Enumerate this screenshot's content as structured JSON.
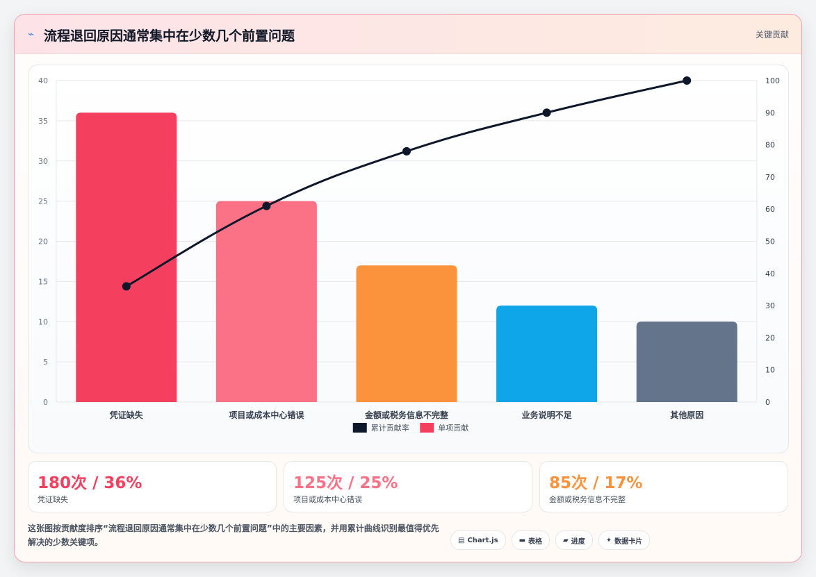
{
  "header": {
    "icon": "lightning-icon",
    "title": "流程退回原因通常集中在少数几个前置问题",
    "tag": "关键贡献"
  },
  "chart_data": {
    "type": "bar",
    "categories": [
      "凭证缺失",
      "项目或成本中心错误",
      "金额或税务信息不完整",
      "业务说明不足",
      "其他原因"
    ],
    "series": [
      {
        "name": "单项贡献",
        "type": "bar",
        "axis": "left",
        "values": [
          36,
          25,
          17,
          12,
          10
        ]
      },
      {
        "name": "累计贡献率",
        "type": "line",
        "axis": "right",
        "values": [
          36,
          61,
          78,
          90,
          100
        ]
      }
    ],
    "bar_colors": [
      "#f43f5e",
      "#fb7185",
      "#fb923c",
      "#0ea5e9",
      "#64748b"
    ],
    "line_color": "#0f172a",
    "y_left": {
      "min": 0,
      "max": 40,
      "ticks": [
        0,
        5,
        10,
        15,
        20,
        25,
        30,
        35,
        40
      ]
    },
    "y_right": {
      "min": 0,
      "max": 100,
      "ticks": [
        0,
        10,
        20,
        30,
        40,
        50,
        60,
        70,
        80,
        90,
        100
      ]
    },
    "legend": [
      {
        "label": "累计贡献率",
        "color": "#0f172a"
      },
      {
        "label": "单项贡献",
        "color": "#f43f5e"
      }
    ],
    "legend_position": "bottom",
    "grid": true
  },
  "stats": [
    {
      "value": "180次 / 36%",
      "label": "凭证缺失",
      "color": "#f43f5e"
    },
    {
      "value": "125次 / 25%",
      "label": "项目或成本中心错误",
      "color": "#fb7185"
    },
    {
      "value": "85次 / 17%",
      "label": "金额或税务信息不完整",
      "color": "#fb923c"
    }
  ],
  "footer": {
    "note": "这张图按贡献度排序“流程退回原因通常集中在少数几个前置问题”中的主要因素，并用累计曲线识别最值得优先解决的少数关键项。",
    "chips": [
      {
        "icon": "chart-icon",
        "glyph": "▤",
        "label": "Chart.js"
      },
      {
        "icon": "table-icon",
        "glyph": "▬",
        "label": "表格"
      },
      {
        "icon": "progress-icon",
        "glyph": "▰",
        "label": "进度"
      },
      {
        "icon": "sparkle-icon",
        "glyph": "✦",
        "label": "数据卡片"
      }
    ]
  }
}
